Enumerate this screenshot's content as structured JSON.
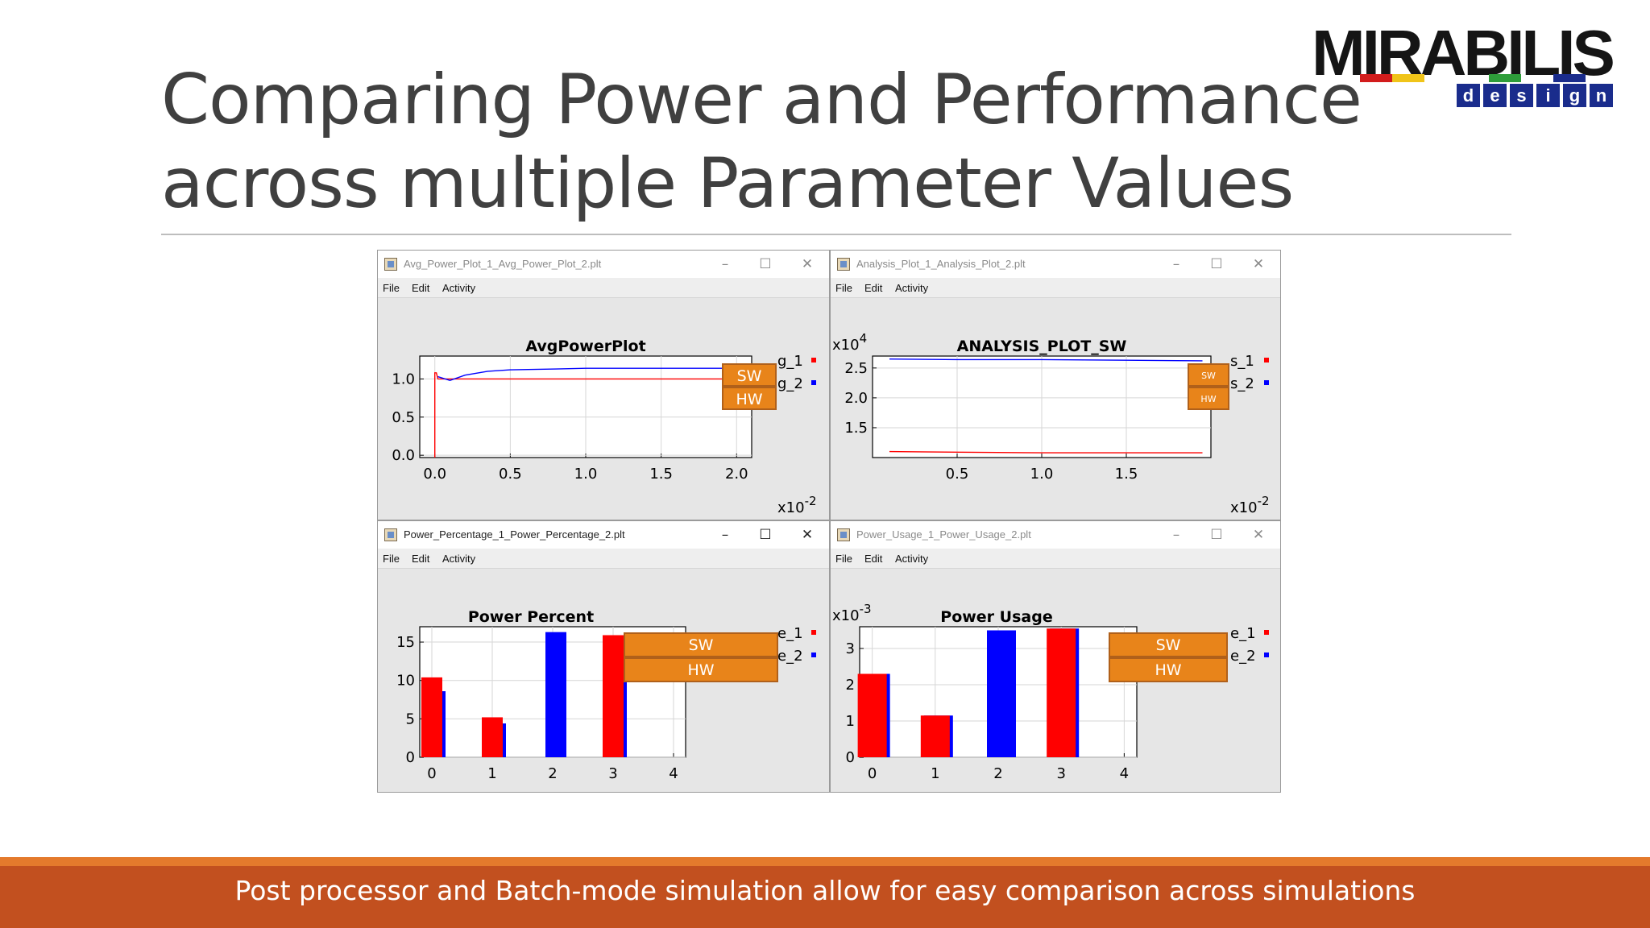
{
  "slide": {
    "title_line1": "Comparing Power and Performance",
    "title_line2": "across multiple Parameter Values",
    "footer": "Post processor and Batch-mode simulation allow for easy comparison across simulations"
  },
  "logo": {
    "word": "MIRABILIS",
    "sub_letters": [
      "d",
      "e",
      "s",
      "i",
      "g",
      "n"
    ],
    "colors": {
      "bar_red": "#d21c1c",
      "bar_yellow": "#f0c419",
      "bar_green": "#2e9d3a",
      "bar_blue": "#1a2c8c"
    }
  },
  "colors": {
    "series1": "#ff0000",
    "series2": "#0000ff",
    "annotation": "#e8841a",
    "annotation_border": "#b0601a"
  },
  "menu": [
    "File",
    "Edit",
    "Activity"
  ],
  "window_controls": [
    "minimize-icon",
    "maximize-icon",
    "close-icon"
  ],
  "windows": [
    {
      "id": "avg-power",
      "title": "Avg_Power_Plot_1_Avg_Power_Plot_2.plt",
      "active": false,
      "chart_data": {
        "type": "line",
        "title": "AvgPowerPlot",
        "x_exponent": "x10-2",
        "y_exponent": "",
        "xlim": [
          -0.1,
          2.1
        ],
        "ylim": [
          -0.03,
          1.3
        ],
        "x_ticks": [
          "0.0",
          "0.5",
          "1.0",
          "1.5",
          "2.0"
        ],
        "y_ticks": [
          "0.0",
          "0.5",
          "1.0"
        ],
        "x_tick_values": [
          0.0,
          0.5,
          1.0,
          1.5,
          2.0
        ],
        "y_tick_values": [
          0.0,
          0.5,
          1.0
        ],
        "series": [
          {
            "color": "series1",
            "x": [
              0.0,
              0.0,
              0.01,
              0.02,
              0.05,
              0.3,
              0.8,
              1.4,
              2.0
            ],
            "y": [
              -0.03,
              1.08,
              1.08,
              1.0,
              1.0,
              1.0,
              1.0,
              1.0,
              1.0
            ]
          },
          {
            "color": "series2",
            "x": [
              0.02,
              0.1,
              0.2,
              0.35,
              0.5,
              0.8,
              1.0,
              1.5,
              2.0
            ],
            "y": [
              1.03,
              0.98,
              1.05,
              1.1,
              1.12,
              1.13,
              1.14,
              1.14,
              1.14
            ]
          }
        ],
        "legend": {
          "placement": "top-right",
          "entries": [
            "g_1",
            "g_2"
          ]
        },
        "annotations": [
          "SW",
          "HW"
        ],
        "annotation_font": "large"
      }
    },
    {
      "id": "analysis",
      "title": "Analysis_Plot_1_Analysis_Plot_2.plt",
      "active": false,
      "chart_data": {
        "type": "line",
        "title": "ANALYSIS_PLOT_SW",
        "x_exponent": "x10-2",
        "y_exponent": "x104",
        "xlim": [
          0.0,
          2.0
        ],
        "ylim": [
          1.0,
          2.7
        ],
        "x_ticks": [
          "0.5",
          "1.0",
          "1.5"
        ],
        "y_ticks": [
          "1.5",
          "2.0",
          "2.5"
        ],
        "x_tick_values": [
          0.5,
          1.0,
          1.5
        ],
        "y_tick_values": [
          1.5,
          2.0,
          2.5
        ],
        "series": [
          {
            "color": "series1",
            "x": [
              0.1,
              0.5,
              1.0,
              1.5,
              1.95
            ],
            "y": [
              1.1,
              1.09,
              1.08,
              1.08,
              1.08
            ]
          },
          {
            "color": "series2",
            "x": [
              0.1,
              0.5,
              1.0,
              1.5,
              1.95
            ],
            "y": [
              2.65,
              2.64,
              2.64,
              2.63,
              2.62
            ]
          }
        ],
        "legend": {
          "placement": "top-right",
          "entries": [
            "s_1",
            "s_2"
          ]
        },
        "annotations": [
          "SW",
          "HW"
        ],
        "annotation_font": "small"
      }
    },
    {
      "id": "power-percent",
      "title": "Power_Percentage_1_Power_Percentage_2.plt",
      "active": true,
      "chart_data": {
        "type": "bar",
        "title": "Power Percent",
        "x_exponent": "",
        "y_exponent": "",
        "xlim": [
          -0.2,
          4.2
        ],
        "ylim": [
          0,
          17
        ],
        "x_ticks": [
          "0",
          "1",
          "2",
          "3",
          "4"
        ],
        "y_ticks": [
          "0",
          "5",
          "10",
          "15"
        ],
        "x_tick_values": [
          0,
          1,
          2,
          3,
          4
        ],
        "y_tick_values": [
          0,
          5,
          10,
          15
        ],
        "categories": [
          0,
          1,
          2,
          3
        ],
        "series": [
          {
            "color": "series1",
            "values": [
              10.4,
              5.2,
              0,
              15.9
            ]
          },
          {
            "color": "series2",
            "values": [
              8.6,
              4.4,
              16.3,
              13.4
            ]
          }
        ],
        "legend": {
          "placement": "top-right",
          "entries": [
            "e_1",
            "e_2"
          ]
        },
        "annotations": [
          "SW",
          "HW"
        ],
        "annotation_font": "large"
      }
    },
    {
      "id": "power-usage",
      "title": "Power_Usage_1_Power_Usage_2.plt",
      "active": false,
      "chart_data": {
        "type": "bar",
        "title": "Power Usage",
        "x_exponent": "",
        "y_exponent": "x10-3",
        "xlim": [
          -0.2,
          4.2
        ],
        "ylim": [
          0,
          3.6
        ],
        "x_ticks": [
          "0",
          "1",
          "2",
          "3",
          "4"
        ],
        "y_ticks": [
          "0",
          "1",
          "2",
          "3"
        ],
        "x_tick_values": [
          0,
          1,
          2,
          3,
          4
        ],
        "y_tick_values": [
          0,
          1,
          2,
          3
        ],
        "categories": [
          0,
          1,
          2,
          3
        ],
        "series": [
          {
            "color": "series1",
            "values": [
              2.3,
              1.15,
              0,
              3.55
            ]
          },
          {
            "color": "series2",
            "values": [
              2.3,
              1.15,
              3.5,
              3.55
            ]
          }
        ],
        "legend": {
          "placement": "top-right",
          "entries": [
            "e_1",
            "e_2"
          ]
        },
        "annotations": [
          "SW",
          "HW"
        ],
        "annotation_font": "large"
      }
    }
  ]
}
